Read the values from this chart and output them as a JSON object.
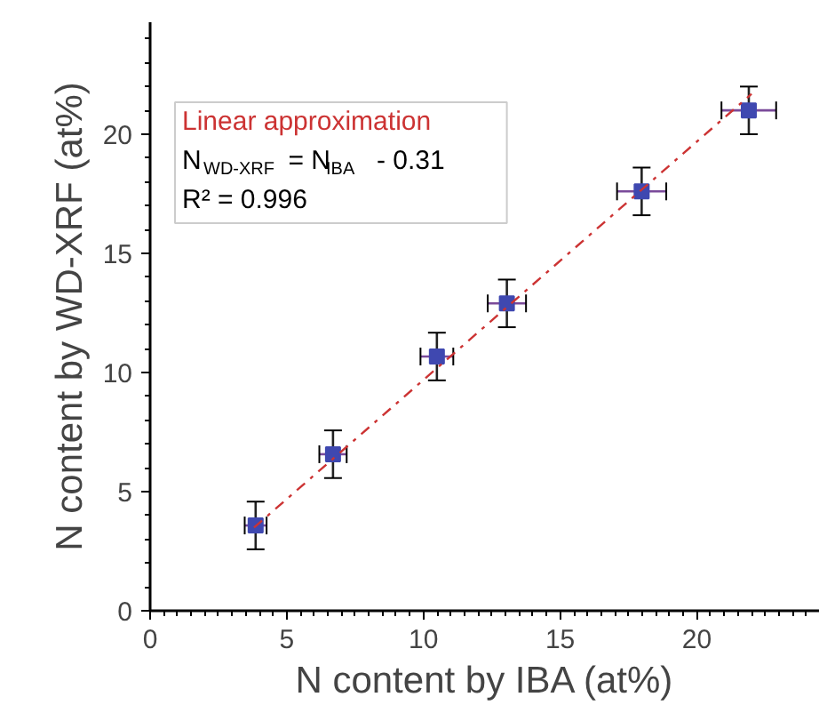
{
  "chart_data": {
    "type": "scatter",
    "xlabel": "N content by IBA (at%)",
    "ylabel": "N content by WD-XRF (at%)",
    "xlim": [
      0,
      24.5
    ],
    "ylim": [
      0,
      24.7
    ],
    "xticks": [
      0,
      5,
      10,
      15,
      20
    ],
    "yticks": [
      0,
      5,
      10,
      15,
      20
    ],
    "grid": false,
    "annotations": [
      "N$_{WD-XRF}$ = N$_{IBA}$ - 0.31",
      "R² = 0.996"
    ],
    "series": [
      {
        "color": "#3f48b0",
        "marker": "square",
        "x": [
          3.86,
          6.69,
          10.49,
          13.05,
          17.98,
          21.9
        ],
        "values": [
          3.58,
          6.57,
          10.67,
          12.9,
          17.6,
          21.0
        ],
        "errors": [
          1.0,
          1.0,
          1.0,
          1.0,
          1.0,
          1.0
        ],
        "xerrors": [
          0.4,
          0.5,
          0.6,
          0.7,
          0.9,
          1.0
        ]
      },
      {
        "type": "line",
        "name": "Linear approximation",
        "color": "#cc3333",
        "line_style": "dashed",
        "x": [
          3.8,
          22.0
        ],
        "values": [
          3.49,
          21.69
        ]
      }
    ]
  }
}
